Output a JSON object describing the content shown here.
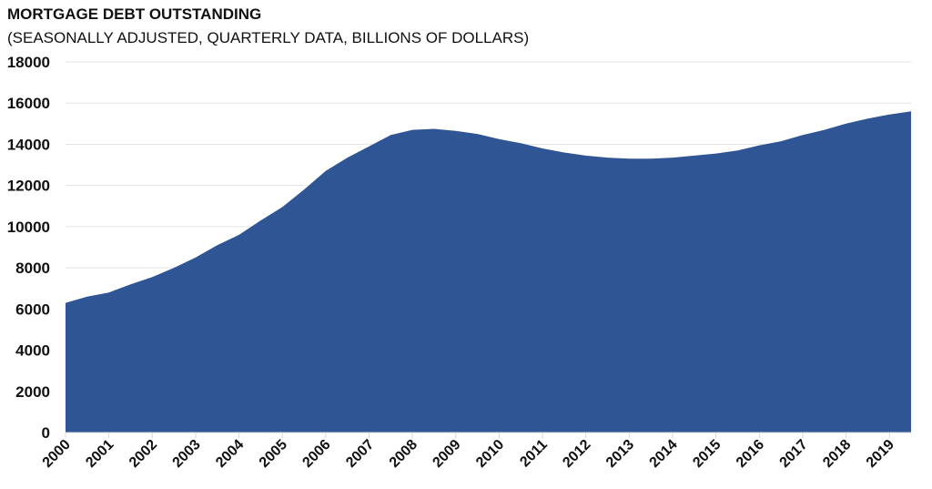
{
  "chart_data": {
    "type": "area",
    "title": "MORTGAGE DEBT OUTSTANDING",
    "subtitle": "(SEASONALLY ADJUSTED, QUARTERLY DATA, BILLIONS OF DOLLARS)",
    "xlabel": "",
    "ylabel": "",
    "ylim": [
      0,
      18000
    ],
    "yticks": [
      "0",
      "2000",
      "4000",
      "6000",
      "8000",
      "10000",
      "12000",
      "14000",
      "16000",
      "18000"
    ],
    "xticks": [
      "2000",
      "2001",
      "2002",
      "2003",
      "2004",
      "2005",
      "2006",
      "2007",
      "2008",
      "2009",
      "2010",
      "2011",
      "2012",
      "2013",
      "2014",
      "2015",
      "2016",
      "2017",
      "2018",
      "2019"
    ],
    "xlim": [
      2000,
      2019.5
    ],
    "grid": true,
    "color": "#305595",
    "series": [
      {
        "name": "Mortgage debt outstanding",
        "x": [
          2000,
          2000.5,
          2001,
          2001.5,
          2002,
          2002.5,
          2003,
          2003.5,
          2004,
          2004.5,
          2005,
          2005.5,
          2006,
          2006.5,
          2007,
          2007.5,
          2008,
          2008.5,
          2009,
          2009.5,
          2010,
          2010.5,
          2011,
          2011.5,
          2012,
          2012.5,
          2013,
          2013.5,
          2014,
          2014.5,
          2015,
          2015.5,
          2016,
          2016.5,
          2017,
          2017.5,
          2018,
          2018.5,
          2019,
          2019.5
        ],
        "values": [
          6300,
          6600,
          6800,
          7200,
          7550,
          8000,
          8500,
          9100,
          9600,
          10300,
          10950,
          11800,
          12700,
          13350,
          13900,
          14450,
          14700,
          14750,
          14650,
          14500,
          14250,
          14050,
          13800,
          13600,
          13450,
          13350,
          13300,
          13300,
          13350,
          13450,
          13550,
          13700,
          13950,
          14150,
          14450,
          14700,
          15000,
          15250,
          15450,
          15600
        ]
      }
    ]
  }
}
